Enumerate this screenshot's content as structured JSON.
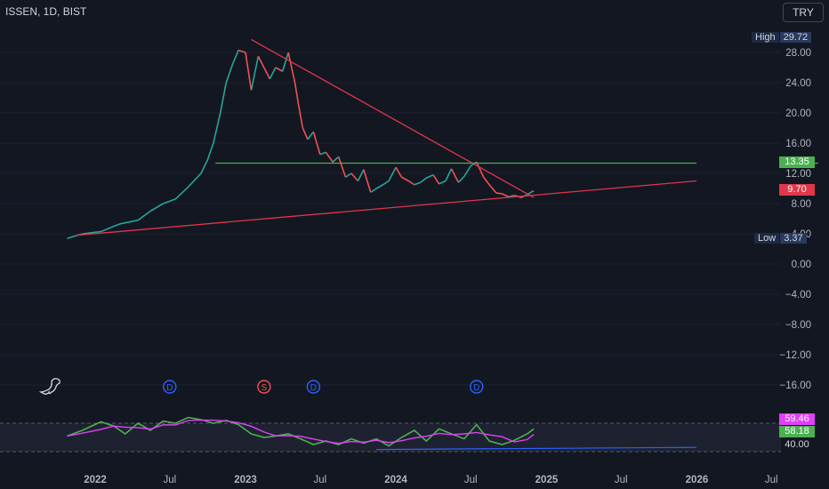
{
  "header": {
    "symbol": "ISSEN, 1D, BIST",
    "currency": "TRY"
  },
  "colors": {
    "background": "#131722",
    "up": "#26a69a",
    "down": "#ef5350",
    "support": "#4caf50",
    "trend": "#e0374a",
    "rsi": "#4caf50",
    "rsi_ma": "#e040fb",
    "rsi_line": "#2962ff"
  },
  "price_labels": {
    "high_tag": "High",
    "high": "29.72",
    "low_tag": "Low",
    "low": "3.37",
    "support": "13.35",
    "last": "9.70"
  },
  "rsi_labels": {
    "rsi_ma": "59.46",
    "rsi": "58.18",
    "level": "40.00"
  },
  "events": [
    "D",
    "S",
    "D",
    "D"
  ],
  "chart_data": [
    {
      "type": "line",
      "title": "",
      "x_ticks": [
        "2022",
        "Jul",
        "2023",
        "Jul",
        "2024",
        "Jul",
        "2025",
        "Jul",
        "2026",
        "Jul"
      ],
      "y_ticks": [
        "28.00",
        "24.00",
        "20.00",
        "16.00",
        "12.00",
        "8.00",
        "4.00",
        "0.00",
        "−4.00",
        "−8.00",
        "−12.00",
        "−16.00"
      ],
      "ylim": [
        -16,
        32
      ],
      "series": [
        {
          "x": [
            "2021-10-25",
            "2021-12-01",
            "2022-01-15",
            "2022-03-01",
            "2022-04-15",
            "2022-05-15",
            "2022-06-15",
            "2022-07-15",
            "2022-08-15",
            "2022-09-15",
            "2022-10-01",
            "2022-10-15",
            "2022-11-01",
            "2022-11-15",
            "2022-12-01",
            "2022-12-15",
            "2023-01-01",
            "2023-01-15",
            "2023-02-01",
            "2023-02-15",
            "2023-03-01",
            "2023-03-15",
            "2023-04-01",
            "2023-04-15",
            "2023-05-01",
            "2023-05-10",
            "2023-05-20",
            "2023-06-01",
            "2023-06-15",
            "2023-07-01",
            "2023-07-15",
            "2023-08-01",
            "2023-08-15",
            "2023-09-01",
            "2023-09-15",
            "2023-10-01",
            "2023-10-15",
            "2023-11-01",
            "2023-11-15",
            "2023-12-01",
            "2023-12-15",
            "2024-01-01",
            "2024-01-15",
            "2024-02-01",
            "2024-02-15",
            "2024-03-01",
            "2024-03-15",
            "2024-04-01",
            "2024-04-15",
            "2024-05-01",
            "2024-05-15",
            "2024-06-01",
            "2024-06-15",
            "2024-07-01",
            "2024-07-15",
            "2024-08-01",
            "2024-08-15",
            "2024-09-01",
            "2024-09-15",
            "2024-10-01",
            "2024-10-15",
            "2024-11-01",
            "2024-11-15",
            "2024-12-01"
          ],
          "y": [
            3.4,
            4.0,
            4.3,
            5.3,
            5.8,
            7.0,
            8.0,
            8.6,
            10.2,
            12.0,
            13.8,
            16.0,
            20.0,
            24.0,
            26.5,
            28.3,
            28.0,
            23.0,
            27.5,
            26.0,
            24.5,
            26.0,
            25.5,
            28.0,
            24.0,
            21.0,
            18.0,
            16.5,
            17.5,
            14.5,
            14.8,
            13.5,
            14.2,
            11.5,
            12.0,
            11.0,
            12.5,
            9.5,
            10.0,
            10.5,
            11.0,
            12.8,
            11.5,
            11.0,
            10.5,
            10.8,
            11.4,
            11.8,
            10.6,
            11.0,
            12.6,
            10.8,
            11.6,
            13.0,
            13.5,
            11.5,
            10.5,
            9.4,
            9.3,
            8.9,
            9.1,
            8.8,
            9.2,
            9.7
          ]
        }
      ],
      "lines": [
        {
          "name": "",
          "x": [
            "2021-11-15",
            "2025-12-31"
          ],
          "y": [
            3.8,
            11.0
          ]
        },
        {
          "name": "",
          "x": [
            "2023-01-15",
            "2024-12-01"
          ],
          "y": [
            29.72,
            8.8
          ]
        },
        {
          "name": "",
          "x": [
            "2022-10-20",
            "2025-12-31"
          ],
          "y": [
            13.35,
            13.35
          ]
        }
      ]
    },
    {
      "type": "line",
      "title": "",
      "ylim": [
        25,
        85
      ],
      "series": [
        {
          "x": [
            "2021-10-25",
            "2021-12-01",
            "2022-01-15",
            "2022-02-15",
            "2022-03-15",
            "2022-04-15",
            "2022-05-15",
            "2022-06-15",
            "2022-07-15",
            "2022-08-15",
            "2022-09-15",
            "2022-10-15",
            "2022-11-15",
            "2022-12-15",
            "2023-01-15",
            "2023-02-15",
            "2023-03-15",
            "2023-04-15",
            "2023-05-15",
            "2023-06-15",
            "2023-07-15",
            "2023-08-15",
            "2023-09-15",
            "2023-10-15",
            "2023-11-15",
            "2023-12-15",
            "2024-01-15",
            "2024-02-15",
            "2024-03-15",
            "2024-04-15",
            "2024-05-15",
            "2024-06-15",
            "2024-07-15",
            "2024-08-15",
            "2024-09-15",
            "2024-10-15",
            "2024-11-15",
            "2024-12-01"
          ],
          "y": [
            52,
            60,
            72,
            66,
            55,
            70,
            60,
            73,
            70,
            78,
            75,
            70,
            74,
            68,
            55,
            50,
            52,
            55,
            48,
            40,
            45,
            40,
            48,
            42,
            48,
            38,
            50,
            60,
            45,
            62,
            55,
            48,
            68,
            45,
            40,
            46,
            55,
            62
          ]
        }
      ],
      "lines": [
        {
          "name": "",
          "x": [
            "2023-11-15",
            "2025-12-31"
          ],
          "y": [
            33,
            36
          ]
        }
      ],
      "levels": [
        70,
        30
      ]
    }
  ]
}
